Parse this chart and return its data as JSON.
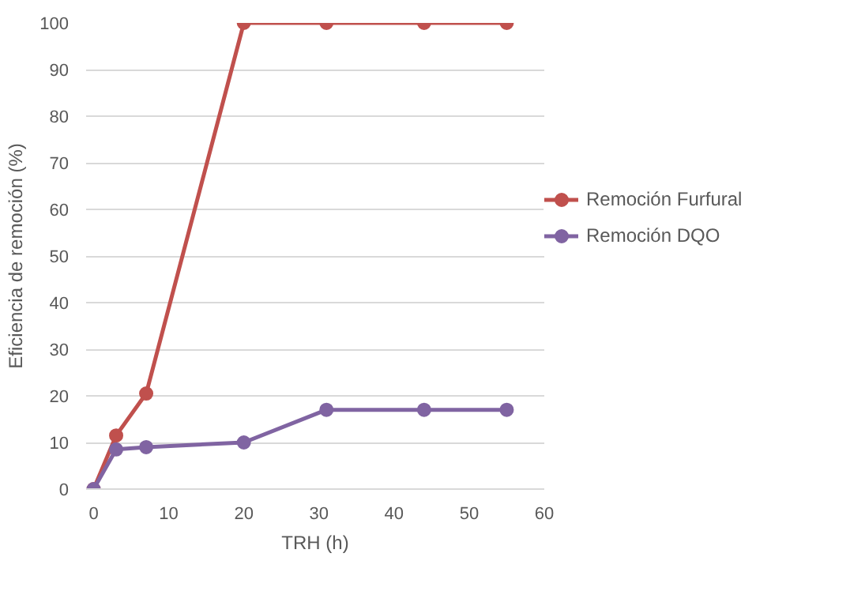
{
  "chart_data": {
    "type": "line",
    "xlabel": "TRH (h)",
    "ylabel": "Eficiencia de remoción (%)",
    "x": [
      0,
      3,
      7,
      20,
      31,
      44,
      55
    ],
    "series": [
      {
        "name": "Remoción Furfural",
        "color": "#c0504d",
        "values": [
          0,
          11.5,
          20.5,
          100,
          100,
          100,
          100
        ]
      },
      {
        "name": "Remoción DQO",
        "color": "#8064a2",
        "values": [
          0,
          8.5,
          9,
          10,
          17,
          17,
          17
        ]
      }
    ],
    "xlim": [
      -1,
      60
    ],
    "xticks": [
      0,
      10,
      20,
      30,
      40,
      50,
      60
    ],
    "ylim": [
      0,
      100
    ],
    "yticks": [
      0,
      10,
      20,
      30,
      40,
      50,
      60,
      70,
      80,
      90,
      100
    ],
    "grid": "y",
    "legend": "right",
    "marker": "circle",
    "line_style": "solid"
  }
}
